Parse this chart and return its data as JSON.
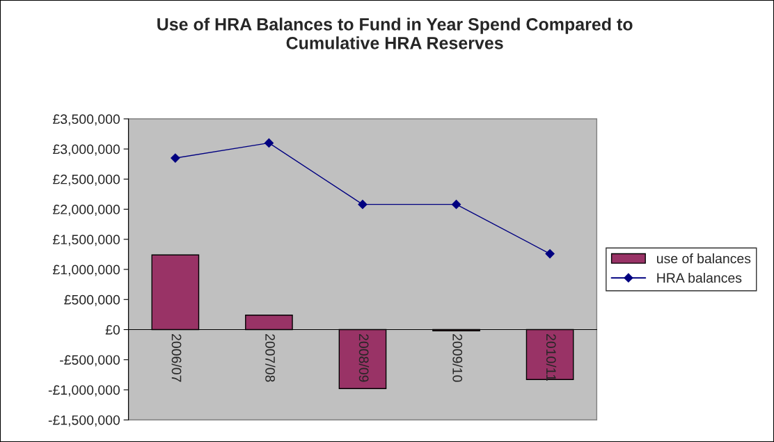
{
  "chart_data": {
    "type": "bar",
    "title": "Use of HRA Balances to Fund in Year Spend Compared to\nCumulative HRA Reserves",
    "categories": [
      "2006/07",
      "2007/08",
      "2008/09",
      "2009/10",
      "2010/11"
    ],
    "series": [
      {
        "name": "use of balances",
        "color": "#993366",
        "values": [
          1240000,
          240000,
          -980000,
          -20000,
          -830000
        ]
      },
      {
        "name": "HRA balances",
        "type": "line",
        "color": "#000080",
        "marker": "diamond",
        "values": [
          2850000,
          3100000,
          2080000,
          2080000,
          1260000
        ]
      }
    ],
    "ylim": [
      -1500000,
      3500000
    ],
    "yticks": [
      {
        "value": -1500000,
        "label": "-£1,500,000"
      },
      {
        "value": -1000000,
        "label": "-£1,000,000"
      },
      {
        "value": -500000,
        "label": "-£500,000"
      },
      {
        "value": 0,
        "label": "£0"
      },
      {
        "value": 500000,
        "label": "£500,000"
      },
      {
        "value": 1000000,
        "label": "£1,000,000"
      },
      {
        "value": 1500000,
        "label": "£1,500,000"
      },
      {
        "value": 2000000,
        "label": "£2,000,000"
      },
      {
        "value": 2500000,
        "label": "£2,500,000"
      },
      {
        "value": 3000000,
        "label": "£3,000,000"
      },
      {
        "value": 3500000,
        "label": "£3,500,000"
      }
    ],
    "grid": false,
    "legend": "right"
  }
}
